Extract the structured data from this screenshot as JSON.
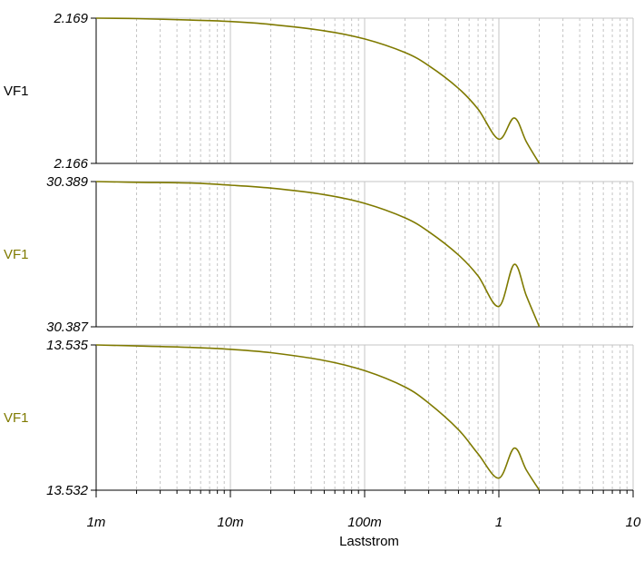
{
  "chart_data": [
    {
      "type": "line",
      "xlabel": "Laststrom",
      "ylabel": "VF1",
      "ylabel_color": "#000000",
      "x_scale": "log",
      "xlim": [
        0.001,
        10
      ],
      "ylim": [
        2.166,
        2.169
      ],
      "y_ticks": [
        "2.169",
        "2.166"
      ],
      "series": [
        {
          "name": "VF1",
          "color": "#7f7a00",
          "x": [
            0.001,
            0.002,
            0.005,
            0.01,
            0.02,
            0.05,
            0.1,
            0.2,
            0.3,
            0.5,
            0.7,
            1,
            1.3,
            1.6,
            2
          ],
          "y": [
            2.169,
            2.16899,
            2.16896,
            2.16893,
            2.16887,
            2.16874,
            2.16857,
            2.16829,
            2.16802,
            2.16755,
            2.16712,
            2.1665,
            2.16694,
            2.16645,
            2.166
          ]
        }
      ]
    },
    {
      "type": "line",
      "xlabel": "Laststrom",
      "ylabel": "VF1",
      "ylabel_color": "#7f7a00",
      "x_scale": "log",
      "xlim": [
        0.001,
        10
      ],
      "ylim": [
        30.387,
        30.389
      ],
      "y_ticks": [
        "30.389",
        "30.387"
      ],
      "series": [
        {
          "name": "VF1",
          "color": "#7f7a00",
          "x": [
            0.001,
            0.002,
            0.005,
            0.01,
            0.02,
            0.05,
            0.1,
            0.2,
            0.3,
            0.5,
            0.7,
            1,
            1.3,
            1.6,
            2
          ],
          "y": [
            30.389,
            30.38899,
            30.38898,
            30.38895,
            30.38891,
            30.38882,
            30.3887,
            30.3885,
            30.38831,
            30.38799,
            30.3877,
            30.38728,
            30.38786,
            30.38743,
            30.387
          ]
        }
      ]
    },
    {
      "type": "line",
      "xlabel": "Laststrom",
      "ylabel": "VF1",
      "ylabel_color": "#7f7a00",
      "x_scale": "log",
      "xlim": [
        0.001,
        10
      ],
      "ylim": [
        13.532,
        13.535
      ],
      "y_ticks": [
        "13.535",
        "13.532"
      ],
      "x_ticks": [
        "1m",
        "10m",
        "100m",
        "1",
        "10"
      ],
      "series": [
        {
          "name": "VF1",
          "color": "#7f7a00",
          "x": [
            0.001,
            0.002,
            0.005,
            0.01,
            0.02,
            0.05,
            0.1,
            0.2,
            0.3,
            0.5,
            0.7,
            1,
            1.3,
            1.6,
            2
          ],
          "y": [
            13.535,
            13.53498,
            13.53495,
            13.53491,
            13.53484,
            13.53468,
            13.53447,
            13.53413,
            13.5338,
            13.53325,
            13.53275,
            13.53225,
            13.53287,
            13.53242,
            13.532
          ]
        }
      ]
    }
  ]
}
